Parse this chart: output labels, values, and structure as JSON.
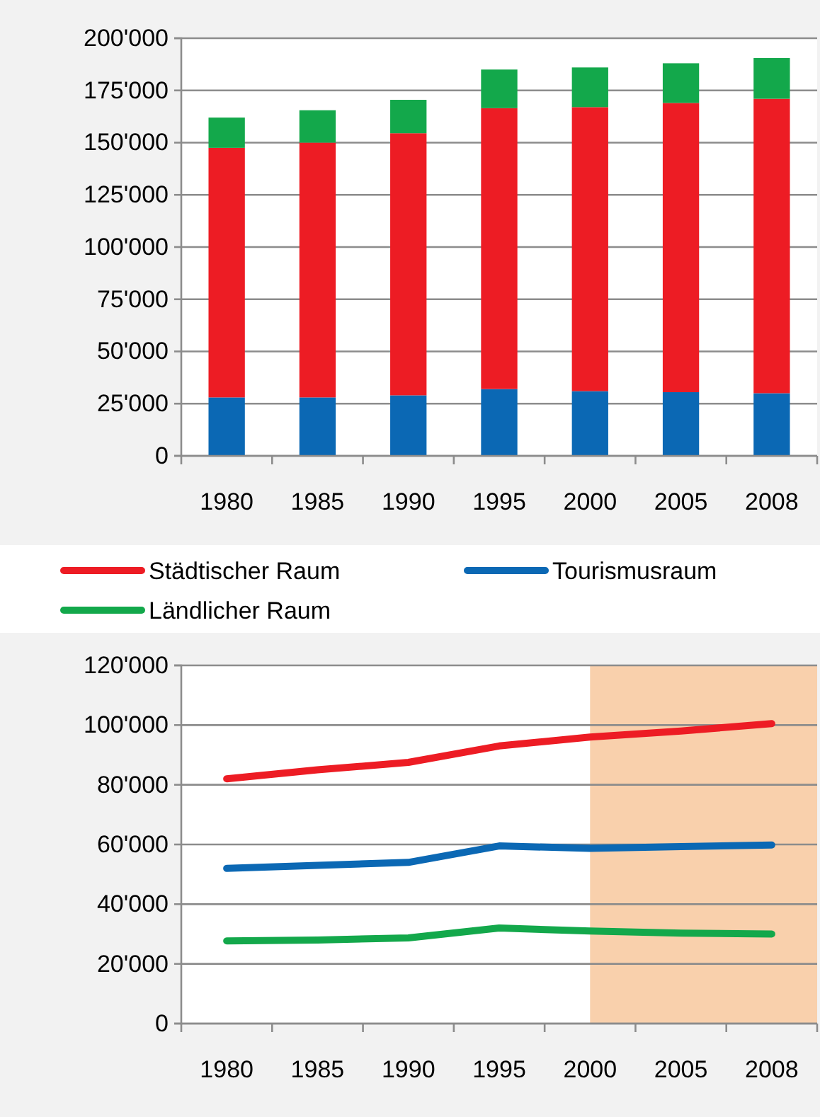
{
  "chart_data": [
    {
      "type": "bar",
      "stacked": true,
      "categories": [
        "1980",
        "1985",
        "1990",
        "1995",
        "2000",
        "2005",
        "2008"
      ],
      "series": [
        {
          "color": "#0b68b4",
          "values": [
            28000,
            28000,
            29000,
            32000,
            31000,
            30500,
            30000
          ]
        },
        {
          "color": "#ed1c24",
          "values": [
            119500,
            122000,
            125500,
            134500,
            136000,
            138500,
            141000
          ]
        },
        {
          "color": "#13a84b",
          "values": [
            14500,
            15500,
            16000,
            18500,
            19000,
            19000,
            19500
          ]
        }
      ],
      "ylim": [
        0,
        200000
      ],
      "yticks": [
        {
          "value": 0,
          "label": "0"
        },
        {
          "value": 25000,
          "label": "25'000"
        },
        {
          "value": 50000,
          "label": "50'000"
        },
        {
          "value": 75000,
          "label": "75'000"
        },
        {
          "value": 100000,
          "label": "100'000"
        },
        {
          "value": 125000,
          "label": "125'000"
        },
        {
          "value": 150000,
          "label": "150'000"
        },
        {
          "value": 175000,
          "label": "175'000"
        },
        {
          "value": 200000,
          "label": "200'000"
        }
      ],
      "grid": "y"
    },
    {
      "type": "line",
      "categories": [
        "1980",
        "1985",
        "1990",
        "1995",
        "2000",
        "2005",
        "2008"
      ],
      "series": [
        {
          "name": "Städtischer Raum",
          "color": "#ed1c24",
          "values": [
            82000,
            85000,
            87500,
            93000,
            96000,
            98000,
            100500
          ]
        },
        {
          "name": "Tourismusraum",
          "color": "#0b68b4",
          "values": [
            52000,
            53000,
            54000,
            59500,
            58700,
            59300,
            59800
          ]
        },
        {
          "name": "Ländlicher Raum",
          "color": "#13a84b",
          "values": [
            27700,
            28000,
            28700,
            32000,
            31000,
            30300,
            30000
          ]
        }
      ],
      "ylim": [
        0,
        120000
      ],
      "yticks": [
        {
          "value": 0,
          "label": "0"
        },
        {
          "value": 20000,
          "label": "20'000"
        },
        {
          "value": 40000,
          "label": "40'000"
        },
        {
          "value": 60000,
          "label": "60'000"
        },
        {
          "value": 80000,
          "label": "80'000"
        },
        {
          "value": 100000,
          "label": "100'000"
        },
        {
          "value": 120000,
          "label": "120'000"
        }
      ],
      "bands": [
        {
          "axis": "x",
          "from": "2000",
          "to": "2008",
          "color": "#f9d0ac"
        }
      ],
      "grid": "y",
      "legend": "top",
      "line_style": "solid",
      "marker": "none"
    }
  ]
}
